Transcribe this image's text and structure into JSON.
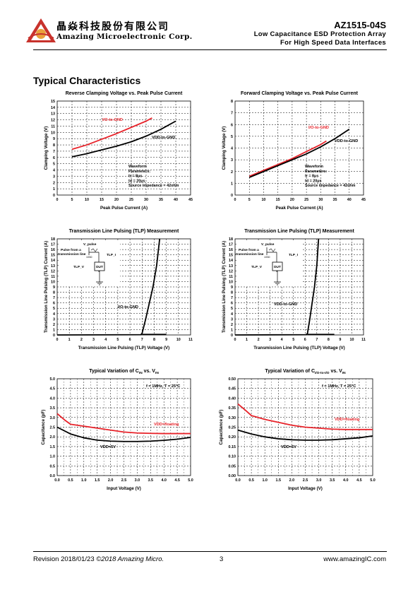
{
  "header": {
    "company_cn": "晶焱科技股份有限公司",
    "company_en": "Amazing Microelectronic Corp.",
    "part_number": "AZ1515-04S",
    "subtitle_1": "Low Capacitance ESD Protection Array",
    "subtitle_2": "For High Speed Data Interfaces"
  },
  "section_title": "Typical Characteristics",
  "footer": {
    "revision": "Revision 2018/01/23 ",
    "copyright": "©2018   Amazing Micro.",
    "page": "3",
    "website": "www.amazingIC.com"
  },
  "colors": {
    "red": "#e8232a",
    "black": "#000000",
    "logo_red": "#c8322c",
    "logo_orange": "#e9a13b"
  },
  "chart_data": [
    {
      "type": "line",
      "title": "Reverse Clamping Voltage  vs. Peak Pulse Current",
      "xlabel": "Peak Pulse Current (A)",
      "ylabel": "Clamping Voltage (V)",
      "xlim": [
        0,
        45
      ],
      "ylim": [
        0,
        15
      ],
      "xticks": [
        0,
        5,
        10,
        15,
        20,
        25,
        30,
        35,
        40,
        45
      ],
      "yticks": [
        0,
        1,
        2,
        3,
        4,
        5,
        6,
        7,
        8,
        9,
        10,
        11,
        12,
        13,
        14,
        15
      ],
      "grid": true,
      "series": [
        {
          "name": "I/O-to-GND",
          "color": "#e8232a",
          "x": [
            5,
            10,
            15,
            20,
            25,
            30,
            32
          ],
          "y": [
            7.3,
            8.0,
            8.9,
            9.8,
            10.8,
            11.8,
            12.3
          ]
        },
        {
          "name": "VDD-to-GND",
          "color": "#000000",
          "x": [
            5,
            10,
            15,
            20,
            25,
            30,
            35,
            40
          ],
          "y": [
            6.1,
            6.6,
            7.2,
            7.8,
            8.5,
            9.4,
            10.5,
            11.8
          ]
        }
      ],
      "annotation": [
        "Waveform",
        "Parameters:",
        "tr = 8μs",
        "td = 20μs",
        "Source impedance = 42ohm"
      ]
    },
    {
      "type": "line",
      "title": "Forward Clamping Voltage  vs. Peak Pulse Current",
      "xlabel": "Peak Pulse Current (A)",
      "ylabel": "Clamping Voltage (V)",
      "xlim": [
        0,
        45
      ],
      "ylim": [
        0,
        8
      ],
      "xticks": [
        0,
        5,
        10,
        15,
        20,
        25,
        30,
        35,
        40,
        45
      ],
      "yticks": [
        0,
        1,
        2,
        3,
        4,
        5,
        6,
        7,
        8
      ],
      "grid": true,
      "series": [
        {
          "name": "I/O-to-GND",
          "color": "#e8232a",
          "x": [
            5,
            10,
            15,
            20,
            25,
            30,
            32
          ],
          "y": [
            1.6,
            2.1,
            2.6,
            3.1,
            3.7,
            4.3,
            4.6
          ]
        },
        {
          "name": "VDD-to-GND",
          "color": "#000000",
          "x": [
            5,
            10,
            15,
            20,
            25,
            30,
            35,
            40
          ],
          "y": [
            1.5,
            2.0,
            2.5,
            3.0,
            3.5,
            4.1,
            4.8,
            5.6
          ]
        }
      ],
      "annotation": [
        "Waveform",
        "Parameters:",
        "tr = 8μs",
        "td = 20μs",
        "Source impedance = 42ohm"
      ]
    },
    {
      "type": "line",
      "title": "Transmission Line Pulsing (TLP) Measurement",
      "xlabel": "Transmission Line Pulsing (TLP) Voltage (V)",
      "ylabel": "Transmission Line Pulsing (TLP) Current (A)",
      "xlim": [
        0,
        11
      ],
      "ylim": [
        0,
        18
      ],
      "xticks": [
        0,
        1,
        2,
        3,
        4,
        5,
        6,
        7,
        8,
        9,
        10,
        11
      ],
      "yticks": [
        0,
        1,
        2,
        3,
        4,
        5,
        6,
        7,
        8,
        9,
        10,
        11,
        12,
        13,
        14,
        15,
        16,
        17,
        18
      ],
      "grid": true,
      "series": [
        {
          "name": "I/O-to-GND",
          "color": "#000000",
          "x": [
            0,
            6.9,
            7.0,
            7.3,
            7.6,
            7.9,
            8.2,
            8.45
          ],
          "y": [
            0,
            0.05,
            0.3,
            3,
            6,
            9,
            13,
            18
          ]
        },
        {
          "name": "",
          "color": "#000000",
          "x": [
            7.0,
            9.0
          ],
          "y": [
            0.1,
            0.1
          ]
        }
      ],
      "inset": {
        "source": "Pulse from a transmission line",
        "v_label": "V_pulse",
        "r_label": "100Ω",
        "i_label": "TLP_I",
        "vv_label": "TLP_V",
        "dut_label": "DUT"
      }
    },
    {
      "type": "line",
      "title": "Transmission Line Pulsing (TLP) Measurement",
      "xlabel": "Transmission Line Pulsing (TLP) Voltage (V)",
      "ylabel": "Transmission Line Pulsing (TLP) Current (A)",
      "xlim": [
        0,
        11
      ],
      "ylim": [
        0,
        18
      ],
      "xticks": [
        0,
        1,
        2,
        3,
        4,
        5,
        6,
        7,
        8,
        9,
        10,
        11
      ],
      "yticks": [
        0,
        1,
        2,
        3,
        4,
        5,
        6,
        7,
        8,
        9,
        10,
        11,
        12,
        13,
        14,
        15,
        16,
        17,
        18
      ],
      "grid": true,
      "series": [
        {
          "name": "VDD-to-GND",
          "color": "#000000",
          "x": [
            0,
            6.1,
            6.2,
            6.4,
            6.6,
            6.8,
            7.0,
            7.15
          ],
          "y": [
            0,
            0.05,
            0.3,
            3,
            6,
            9,
            13,
            18
          ]
        },
        {
          "name": "",
          "color": "#000000",
          "x": [
            6.2,
            8.5
          ],
          "y": [
            0.1,
            0.1
          ]
        }
      ],
      "inset": {
        "source": "Pulse from a transmission line",
        "v_label": "V_pulse",
        "r_label": "100Ω",
        "i_label": "TLP_I",
        "vv_label": "TLP_V",
        "dut_label": "DUT"
      }
    },
    {
      "type": "line",
      "title_main": "Typical Variation of C",
      "title_sub": "IN",
      "title_mid": " vs. V",
      "title_sub2": "IN",
      "xlabel": "Input Voltage (V)",
      "ylabel": "Capacitance (pF)",
      "xlim": [
        0,
        5
      ],
      "ylim": [
        0,
        5
      ],
      "xticks": [
        0.0,
        0.5,
        1.0,
        1.5,
        2.0,
        2.5,
        3.0,
        3.5,
        4.0,
        4.5,
        5.0
      ],
      "yticks": [
        0.0,
        0.5,
        1.0,
        1.5,
        2.0,
        2.5,
        3.0,
        3.5,
        4.0,
        4.5,
        5.0
      ],
      "grid": true,
      "condition": "f = 1MHz, T = 25°C",
      "series": [
        {
          "name": "VDD=floating",
          "color": "#e8232a",
          "x": [
            0,
            0.3,
            0.5,
            1.0,
            1.5,
            2.0,
            2.5,
            3.0,
            3.5,
            4.0,
            4.5,
            5.0
          ],
          "y": [
            3.2,
            2.85,
            2.65,
            2.55,
            2.45,
            2.35,
            2.25,
            2.2,
            2.18,
            2.17,
            2.17,
            2.17
          ]
        },
        {
          "name": "VDD=5V",
          "color": "#000000",
          "x": [
            0,
            0.5,
            1.0,
            1.5,
            2.0,
            2.5,
            3.0,
            3.5,
            4.0,
            4.5,
            5.0
          ],
          "y": [
            2.5,
            2.15,
            1.95,
            1.83,
            1.78,
            1.76,
            1.76,
            1.78,
            1.82,
            1.88,
            1.97
          ]
        }
      ]
    },
    {
      "type": "line",
      "title_main": "Typical Variation of C",
      "title_sub": "I/O-to-I/O",
      "title_mid": " vs. V",
      "title_sub2": "IN",
      "xlabel": "Input Voltage (V)",
      "ylabel": "Capacitance (pF)",
      "xlim": [
        0,
        5
      ],
      "ylim": [
        0,
        0.5
      ],
      "xticks": [
        0.0,
        0.5,
        1.0,
        1.5,
        2.0,
        2.5,
        3.0,
        3.5,
        4.0,
        4.5,
        5.0
      ],
      "yticks": [
        0.0,
        0.05,
        0.1,
        0.15,
        0.2,
        0.25,
        0.3,
        0.35,
        0.4,
        0.45,
        0.5
      ],
      "grid": true,
      "condition": "f = 1MHz, T = 25°C",
      "series": [
        {
          "name": "VDD=floating",
          "color": "#e8232a",
          "x": [
            0,
            0.3,
            0.5,
            1.0,
            1.5,
            2.0,
            2.5,
            3.0,
            3.5,
            4.0,
            4.5,
            5.0
          ],
          "y": [
            0.37,
            0.335,
            0.31,
            0.29,
            0.275,
            0.26,
            0.25,
            0.245,
            0.24,
            0.238,
            0.238,
            0.238
          ]
        },
        {
          "name": "VDD=5V",
          "color": "#000000",
          "x": [
            0,
            0.5,
            1.0,
            1.5,
            2.0,
            2.5,
            3.0,
            3.5,
            4.0,
            4.5,
            5.0
          ],
          "y": [
            0.235,
            0.215,
            0.2,
            0.19,
            0.185,
            0.183,
            0.183,
            0.185,
            0.19,
            0.195,
            0.205
          ]
        }
      ]
    }
  ]
}
